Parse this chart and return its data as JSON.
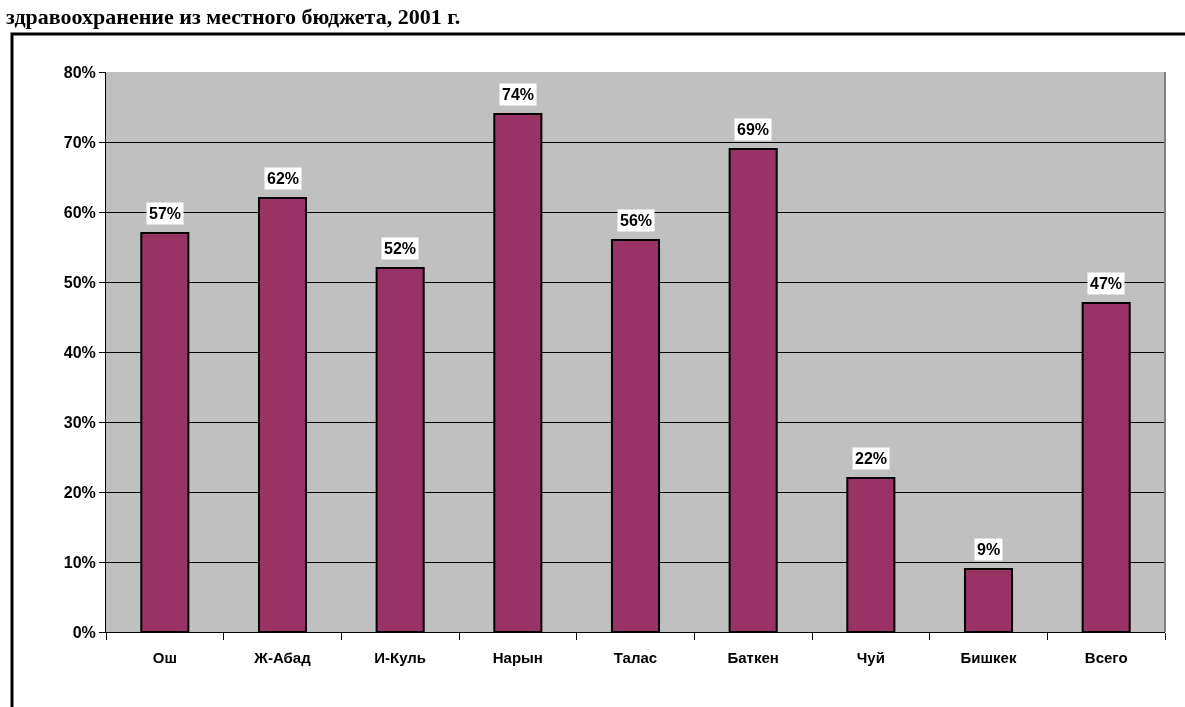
{
  "chart_data": {
    "type": "bar",
    "title": "здравоохранение из местного бюджета, 2001 г.",
    "categories": [
      "Ош",
      "Ж-Абад",
      "И-Куль",
      "Нарын",
      "Талас",
      "Баткен",
      "Чуй",
      "Бишкек",
      "Всего"
    ],
    "values": [
      57,
      62,
      52,
      74,
      56,
      69,
      22,
      9,
      47
    ],
    "value_labels": [
      "57%",
      "62%",
      "52%",
      "74%",
      "56%",
      "69%",
      "22%",
      "9%",
      "47%"
    ],
    "color": "#993366",
    "ylim": [
      0,
      80
    ],
    "yticks": [
      {
        "value": 0,
        "label": "0%"
      },
      {
        "value": 10,
        "label": "10%"
      },
      {
        "value": 20,
        "label": "20%"
      },
      {
        "value": 30,
        "label": "30%"
      },
      {
        "value": 40,
        "label": "40%"
      },
      {
        "value": 50,
        "label": "50%"
      },
      {
        "value": 60,
        "label": "60%"
      },
      {
        "value": 70,
        "label": "70%"
      },
      {
        "value": 80,
        "label": "80%"
      }
    ],
    "grid": "y"
  }
}
